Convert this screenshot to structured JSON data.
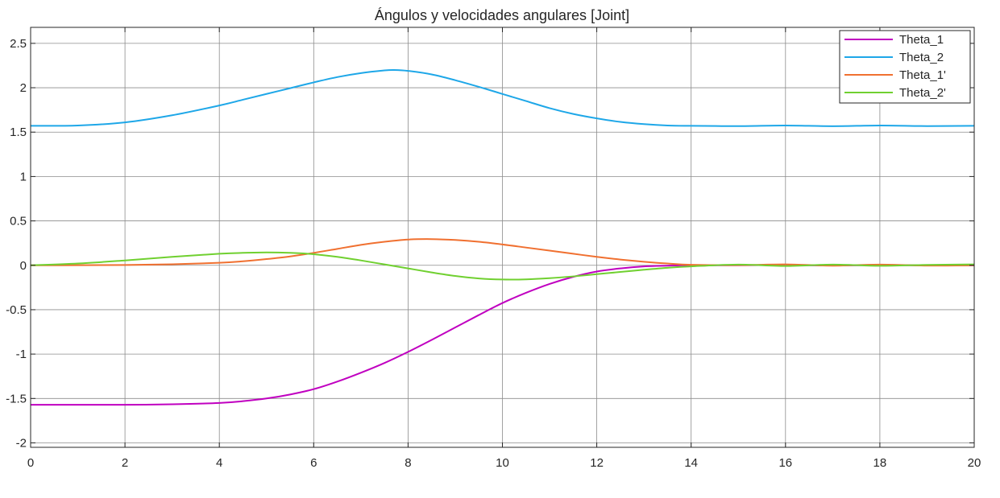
{
  "chart_data": {
    "type": "line",
    "title": "Ángulos y velocidades angulares [Joint]",
    "xlabel": "",
    "ylabel": "",
    "xlim": [
      0,
      20
    ],
    "ylim": [
      -2.05,
      2.68
    ],
    "xticks": [
      0,
      2,
      4,
      6,
      8,
      10,
      12,
      14,
      16,
      18,
      20
    ],
    "yticks": [
      -2,
      -1.5,
      -1,
      -0.5,
      0,
      0.5,
      1,
      1.5,
      2,
      2.5
    ],
    "xtick_labels": [
      "0",
      "2",
      "4",
      "6",
      "8",
      "10",
      "12",
      "14",
      "16",
      "18",
      "20"
    ],
    "ytick_labels": [
      "-2",
      "-1.5",
      "-1",
      "-0.5",
      "0",
      "0.5",
      "1",
      "1.5",
      "2",
      "2.5"
    ],
    "grid": true,
    "legend_position": "top-right",
    "series": [
      {
        "name": "Theta_1",
        "color": "#c000c0",
        "x": [
          0,
          1,
          2,
          3,
          4,
          4.5,
          5,
          5.5,
          6,
          6.5,
          7,
          7.5,
          8,
          8.5,
          9,
          9.5,
          10,
          10.5,
          11,
          11.5,
          12,
          12.5,
          13,
          13.5,
          14,
          15,
          16,
          17,
          18,
          19,
          20
        ],
        "y": [
          -1.571,
          -1.571,
          -1.571,
          -1.565,
          -1.55,
          -1.53,
          -1.5,
          -1.455,
          -1.395,
          -1.31,
          -1.21,
          -1.1,
          -0.975,
          -0.84,
          -0.7,
          -0.56,
          -0.425,
          -0.31,
          -0.21,
          -0.13,
          -0.07,
          -0.035,
          -0.012,
          -0.004,
          0,
          0,
          0.003,
          -0.002,
          0.002,
          0,
          0
        ]
      },
      {
        "name": "Theta_2",
        "color": "#1ea7e8",
        "x": [
          0,
          1,
          2,
          3,
          4,
          4.5,
          5,
          5.5,
          6,
          6.5,
          7,
          7.5,
          7.7,
          8,
          8.5,
          9,
          9.5,
          10,
          10.5,
          11,
          11.5,
          12,
          12.5,
          13,
          13.5,
          14,
          15,
          16,
          17,
          18,
          19,
          20
        ],
        "y": [
          1.571,
          1.575,
          1.61,
          1.69,
          1.8,
          1.865,
          1.93,
          1.995,
          2.06,
          2.12,
          2.165,
          2.195,
          2.2,
          2.19,
          2.15,
          2.085,
          2.01,
          1.93,
          1.85,
          1.77,
          1.705,
          1.655,
          1.615,
          1.59,
          1.575,
          1.571,
          1.568,
          1.575,
          1.567,
          1.575,
          1.568,
          1.571
        ]
      },
      {
        "name": "Theta_1'",
        "color": "#f07030",
        "x": [
          0,
          1,
          2,
          3,
          4,
          4.5,
          5,
          5.5,
          6,
          6.5,
          7,
          7.5,
          8,
          8.5,
          9,
          9.5,
          10,
          10.5,
          11,
          11.5,
          12,
          12.5,
          13,
          13.5,
          14,
          15,
          16,
          17,
          18,
          19,
          20
        ],
        "y": [
          0,
          0.001,
          0.004,
          0.012,
          0.028,
          0.045,
          0.07,
          0.1,
          0.14,
          0.185,
          0.23,
          0.265,
          0.29,
          0.295,
          0.285,
          0.265,
          0.235,
          0.2,
          0.165,
          0.13,
          0.095,
          0.065,
          0.04,
          0.02,
          0.006,
          0.002,
          0.01,
          -0.004,
          0.008,
          -0.003,
          0
        ]
      },
      {
        "name": "Theta_2'",
        "color": "#70d030",
        "x": [
          0,
          1,
          2,
          3,
          4,
          4.5,
          5,
          5.5,
          6,
          6.5,
          7,
          7.5,
          8,
          8.5,
          9,
          9.5,
          10,
          10.5,
          11,
          11.5,
          12,
          12.5,
          13,
          13.5,
          14,
          15,
          16,
          17,
          18,
          19,
          20
        ],
        "y": [
          0,
          0.02,
          0.055,
          0.095,
          0.13,
          0.14,
          0.145,
          0.14,
          0.125,
          0.095,
          0.055,
          0.01,
          -0.035,
          -0.08,
          -0.12,
          -0.148,
          -0.16,
          -0.158,
          -0.145,
          -0.125,
          -0.1,
          -0.075,
          -0.05,
          -0.028,
          -0.012,
          0.008,
          -0.008,
          0.008,
          -0.006,
          0.005,
          0.01
        ]
      }
    ]
  }
}
